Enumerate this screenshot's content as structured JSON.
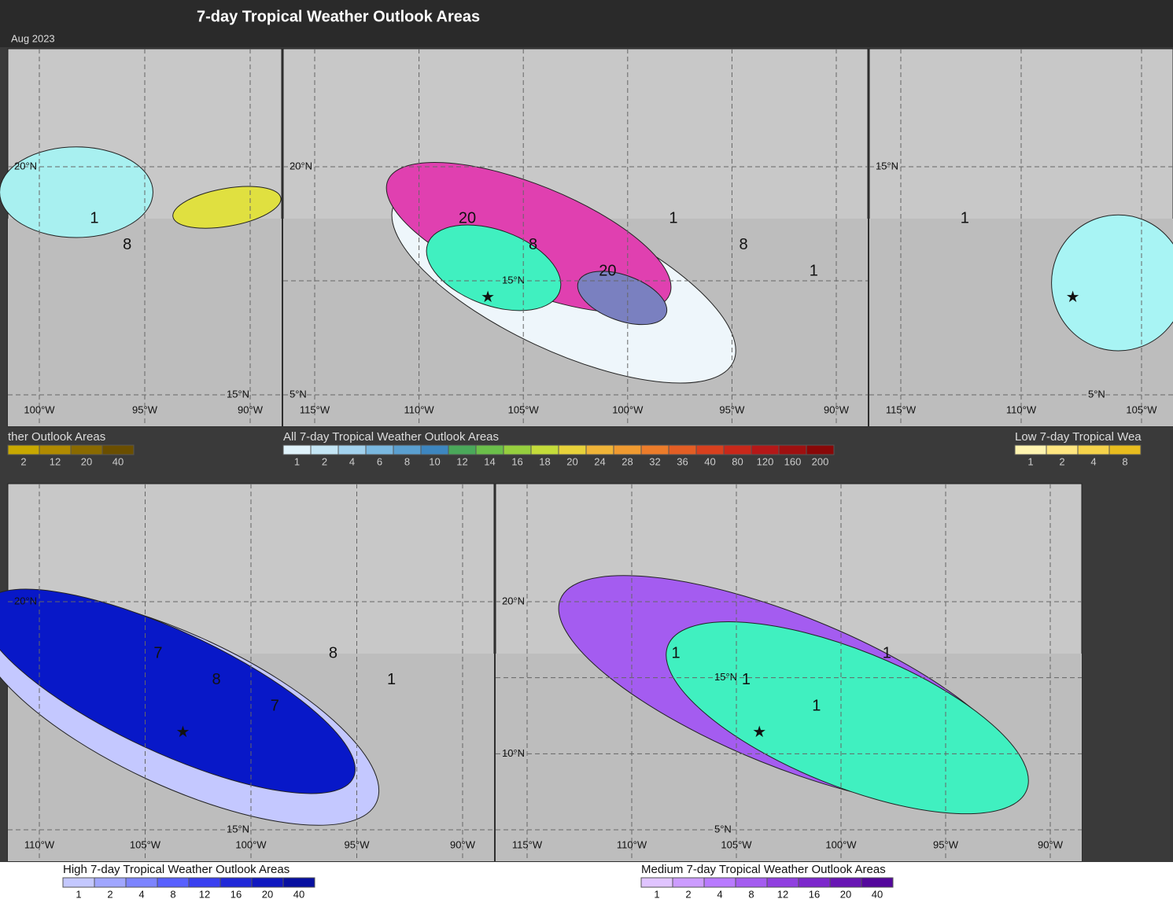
{
  "header": {
    "title": "7-day Tropical Weather Outlook Areas",
    "date": "Aug 2023"
  },
  "panels": [
    {
      "title": "ther Outlook Areas",
      "legend_labels": [
        "2",
        "12",
        "20",
        "40"
      ],
      "colors": [
        "#c8a800",
        "#b08a00",
        "#8a6a00",
        "#6a4e00"
      ],
      "lat_labels": [
        "20°N",
        "15°N"
      ],
      "lon_labels": [
        "100°W",
        "95°W",
        "90°W"
      ],
      "contour_labels": [
        "1",
        "8"
      ]
    },
    {
      "title": "All 7-day Tropical Weather Outlook Areas",
      "legend_labels": [
        "1",
        "2",
        "4",
        "6",
        "8",
        "10",
        "12",
        "14",
        "16",
        "18",
        "20",
        "24",
        "28",
        "32",
        "36",
        "40",
        "80",
        "120",
        "160",
        "200"
      ],
      "colors": [
        "#e0f3fb",
        "#c4e6f5",
        "#a2d2ee",
        "#7ab8e0",
        "#5a9fd0",
        "#3d86c0",
        "#4aa85a",
        "#6bbf4a",
        "#96cf3e",
        "#c4dc3a",
        "#e8d23a",
        "#f0b438",
        "#f09a30",
        "#ec7c2a",
        "#e45e24",
        "#d8401e",
        "#c8281a",
        "#b41818",
        "#9e1010",
        "#880808"
      ],
      "lat_labels": [
        "20°N",
        "15°N",
        "5°N"
      ],
      "lon_labels": [
        "115°W",
        "110°W",
        "105°W",
        "100°W",
        "95°W",
        "90°W"
      ],
      "contour_labels": [
        "20",
        "8",
        "20",
        "1",
        "8",
        "1"
      ]
    },
    {
      "title": "Low 7-day Tropical Wea",
      "legend_labels": [
        "1",
        "2",
        "4",
        "8"
      ],
      "colors": [
        "#fff4b0",
        "#ffe680",
        "#f5d24a",
        "#e8bc1e"
      ],
      "lat_labels": [
        "15°N",
        "5°N"
      ],
      "lon_labels": [
        "115°W",
        "110°W",
        "105°W"
      ],
      "contour_labels": [
        "1"
      ]
    },
    {
      "title": "High 7-day Tropical Weather Outlook Areas",
      "legend_labels": [
        "1",
        "2",
        "4",
        "8",
        "12",
        "16",
        "20",
        "40"
      ],
      "colors": [
        "#c4c8ff",
        "#a0a6ff",
        "#7c84ff",
        "#5860ff",
        "#3a40f0",
        "#2028d8",
        "#1018c0",
        "#0810a0"
      ],
      "lat_labels": [
        "20°N",
        "15°N"
      ],
      "lon_labels": [
        "110°W",
        "105°W",
        "100°W",
        "95°W",
        "90°W"
      ],
      "contour_labels": [
        "7",
        "8",
        "7",
        "8",
        "1"
      ]
    },
    {
      "title": "Medium 7-day Tropical Weather Outlook Areas",
      "legend_labels": [
        "1",
        "2",
        "4",
        "8",
        "12",
        "16",
        "20",
        "40"
      ],
      "colors": [
        "#e0c4ff",
        "#cc9cff",
        "#b87aff",
        "#a45cf0",
        "#9040e0",
        "#7c28cc",
        "#6816b4",
        "#54089c"
      ],
      "lat_labels": [
        "20°N",
        "15°N",
        "10°N",
        "5°N"
      ],
      "lon_labels": [
        "115°W",
        "110°W",
        "105°W",
        "100°W",
        "95°W",
        "90°W"
      ],
      "contour_labels": [
        "1",
        "1",
        "1",
        "1"
      ]
    }
  ]
}
